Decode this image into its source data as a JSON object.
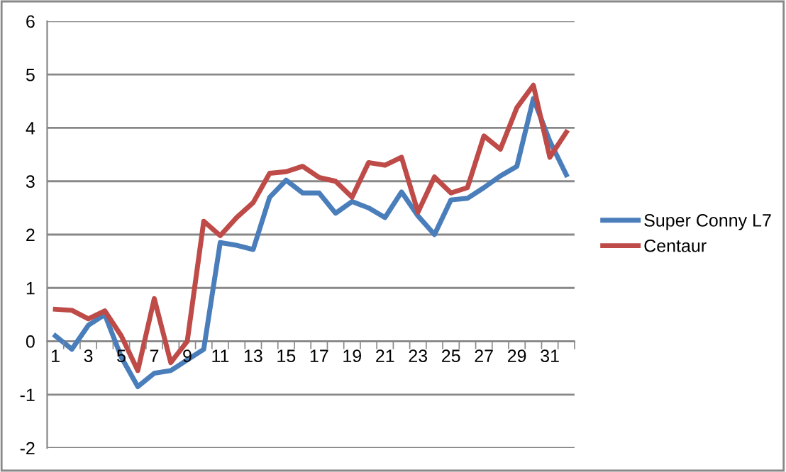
{
  "chart_data": {
    "type": "line",
    "categories": [
      "1",
      null,
      "3",
      null,
      "5",
      null,
      "7",
      null,
      "9",
      null,
      "11",
      null,
      "13",
      null,
      "15",
      null,
      "17",
      null,
      "19",
      null,
      "21",
      null,
      "23",
      null,
      "25",
      null,
      "27",
      null,
      "29",
      null,
      "31",
      null
    ],
    "series": [
      {
        "name": "Super Conny L7",
        "color": "#4a7ebb",
        "values": [
          0.1,
          -0.15,
          0.3,
          0.5,
          -0.3,
          -0.85,
          -0.6,
          -0.55,
          -0.35,
          -0.15,
          1.85,
          1.8,
          1.72,
          2.7,
          3.02,
          2.78,
          2.78,
          2.4,
          2.62,
          2.5,
          2.32,
          2.8,
          2.35,
          2.0,
          2.65,
          2.68,
          2.88,
          3.1,
          3.28,
          4.55,
          3.75,
          3.12
        ]
      },
      {
        "name": "Centaur",
        "color": "#be4b48",
        "values": [
          0.6,
          0.58,
          0.42,
          0.57,
          0.1,
          -0.55,
          0.8,
          -0.4,
          0.0,
          2.25,
          1.98,
          2.32,
          2.6,
          3.15,
          3.18,
          3.28,
          3.07,
          3.0,
          2.7,
          3.35,
          3.3,
          3.45,
          2.42,
          3.08,
          2.78,
          2.88,
          3.85,
          3.6,
          4.38,
          4.8,
          3.45,
          3.92
        ]
      }
    ],
    "ylim": [
      -2,
      6
    ],
    "yticks": [
      -2,
      -1,
      0,
      1,
      2,
      3,
      4,
      5,
      6
    ],
    "grid": "y",
    "legend": "right",
    "marker": "none",
    "line_style": "solid"
  }
}
